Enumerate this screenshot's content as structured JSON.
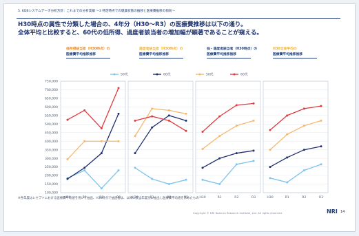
{
  "header": {
    "crumb": "5. KDBシステムデータ分析方針：これまでの分析実績 ～3 特定時点での健康状態の推移と医療費推移の傾向～",
    "headline_line1": "H30時点の属性で分類した場合の、4年分（H30～R3）の医療費推移は以下の通り。",
    "headline_line2": "全体平均と比較すると、60代の低所得、過度者該当者の増加幅が顕著であることが窺える。"
  },
  "panels": [
    {
      "group": "低所得該当者（H30時点）の",
      "sub": "医療費平均推移推移"
    },
    {
      "group": "過度者該当者（H30時点）の",
      "sub": "医療費平均推移推移"
    },
    {
      "group": "低・過度者該当者（H30時点）の",
      "sub": "医療費平均推移推移"
    },
    {
      "group": "H30全体平均の",
      "sub": "医療費平均推移推移"
    }
  ],
  "footnote": "※各年度はレセプトにおける医療費平均値を用いて抽出、H30時点で抽出者は、以降に該当年度別に抽出し医療費平均値を求めたもの",
  "footer": "Copyright © NRI Nomura Research Institute, Ltd. All rights reserved.",
  "logo": "NRI",
  "page_number": "14",
  "chart_data": {
    "type": "line",
    "ylim": [
      100000,
      750000
    ],
    "yticks": [
      "750,000",
      "700,000",
      "650,000",
      "600,000",
      "550,000",
      "500,000",
      "450,000",
      "400,000",
      "350,000",
      "300,000",
      "250,000",
      "200,000",
      "150,000",
      "100,000"
    ],
    "ytick_values": [
      750000,
      700000,
      650000,
      600000,
      550000,
      500000,
      450000,
      400000,
      350000,
      300000,
      250000,
      200000,
      150000,
      100000
    ],
    "categories": [
      "H30",
      "R1",
      "R2",
      "R3"
    ],
    "legend": [
      "50代",
      "60代",
      "50代",
      "60代"
    ],
    "series_colors": [
      "#7ec3ea",
      "#1f2f6e",
      "#f5b86b",
      "#e03a3e"
    ],
    "panels": [
      {
        "series": [
          {
            "values": [
              185000,
              230000,
              125000,
              230000
            ]
          },
          {
            "values": [
              180000,
              245000,
              330000,
              560000
            ]
          },
          {
            "values": [
              295000,
              400000,
              400000,
              400000
            ]
          },
          {
            "values": [
              525000,
              580000,
              475000,
              710000
            ]
          }
        ]
      },
      {
        "series": [
          {
            "values": [
              245000,
              180000,
              150000,
              175000
            ]
          },
          {
            "values": [
              330000,
              480000,
              550000,
              520000
            ]
          },
          {
            "values": [
              430000,
              590000,
              580000,
              560000
            ]
          },
          {
            "values": [
              520000,
              545000,
              520000,
              460000
            ]
          }
        ]
      },
      {
        "series": [
          {
            "values": [
              175000,
              150000,
              265000,
              285000
            ]
          },
          {
            "values": [
              245000,
              300000,
              330000,
              345000
            ]
          },
          {
            "values": [
              355000,
              430000,
              490000,
              520000
            ]
          },
          {
            "values": [
              455000,
              545000,
              610000,
              620000
            ]
          }
        ]
      },
      {
        "series": [
          {
            "values": [
              185000,
              160000,
              230000,
              265000
            ]
          },
          {
            "values": [
              250000,
              305000,
              350000,
              370000
            ]
          },
          {
            "values": [
              350000,
              440000,
              490000,
              520000
            ]
          },
          {
            "values": [
              465000,
              550000,
              590000,
              605000
            ]
          }
        ]
      }
    ]
  }
}
